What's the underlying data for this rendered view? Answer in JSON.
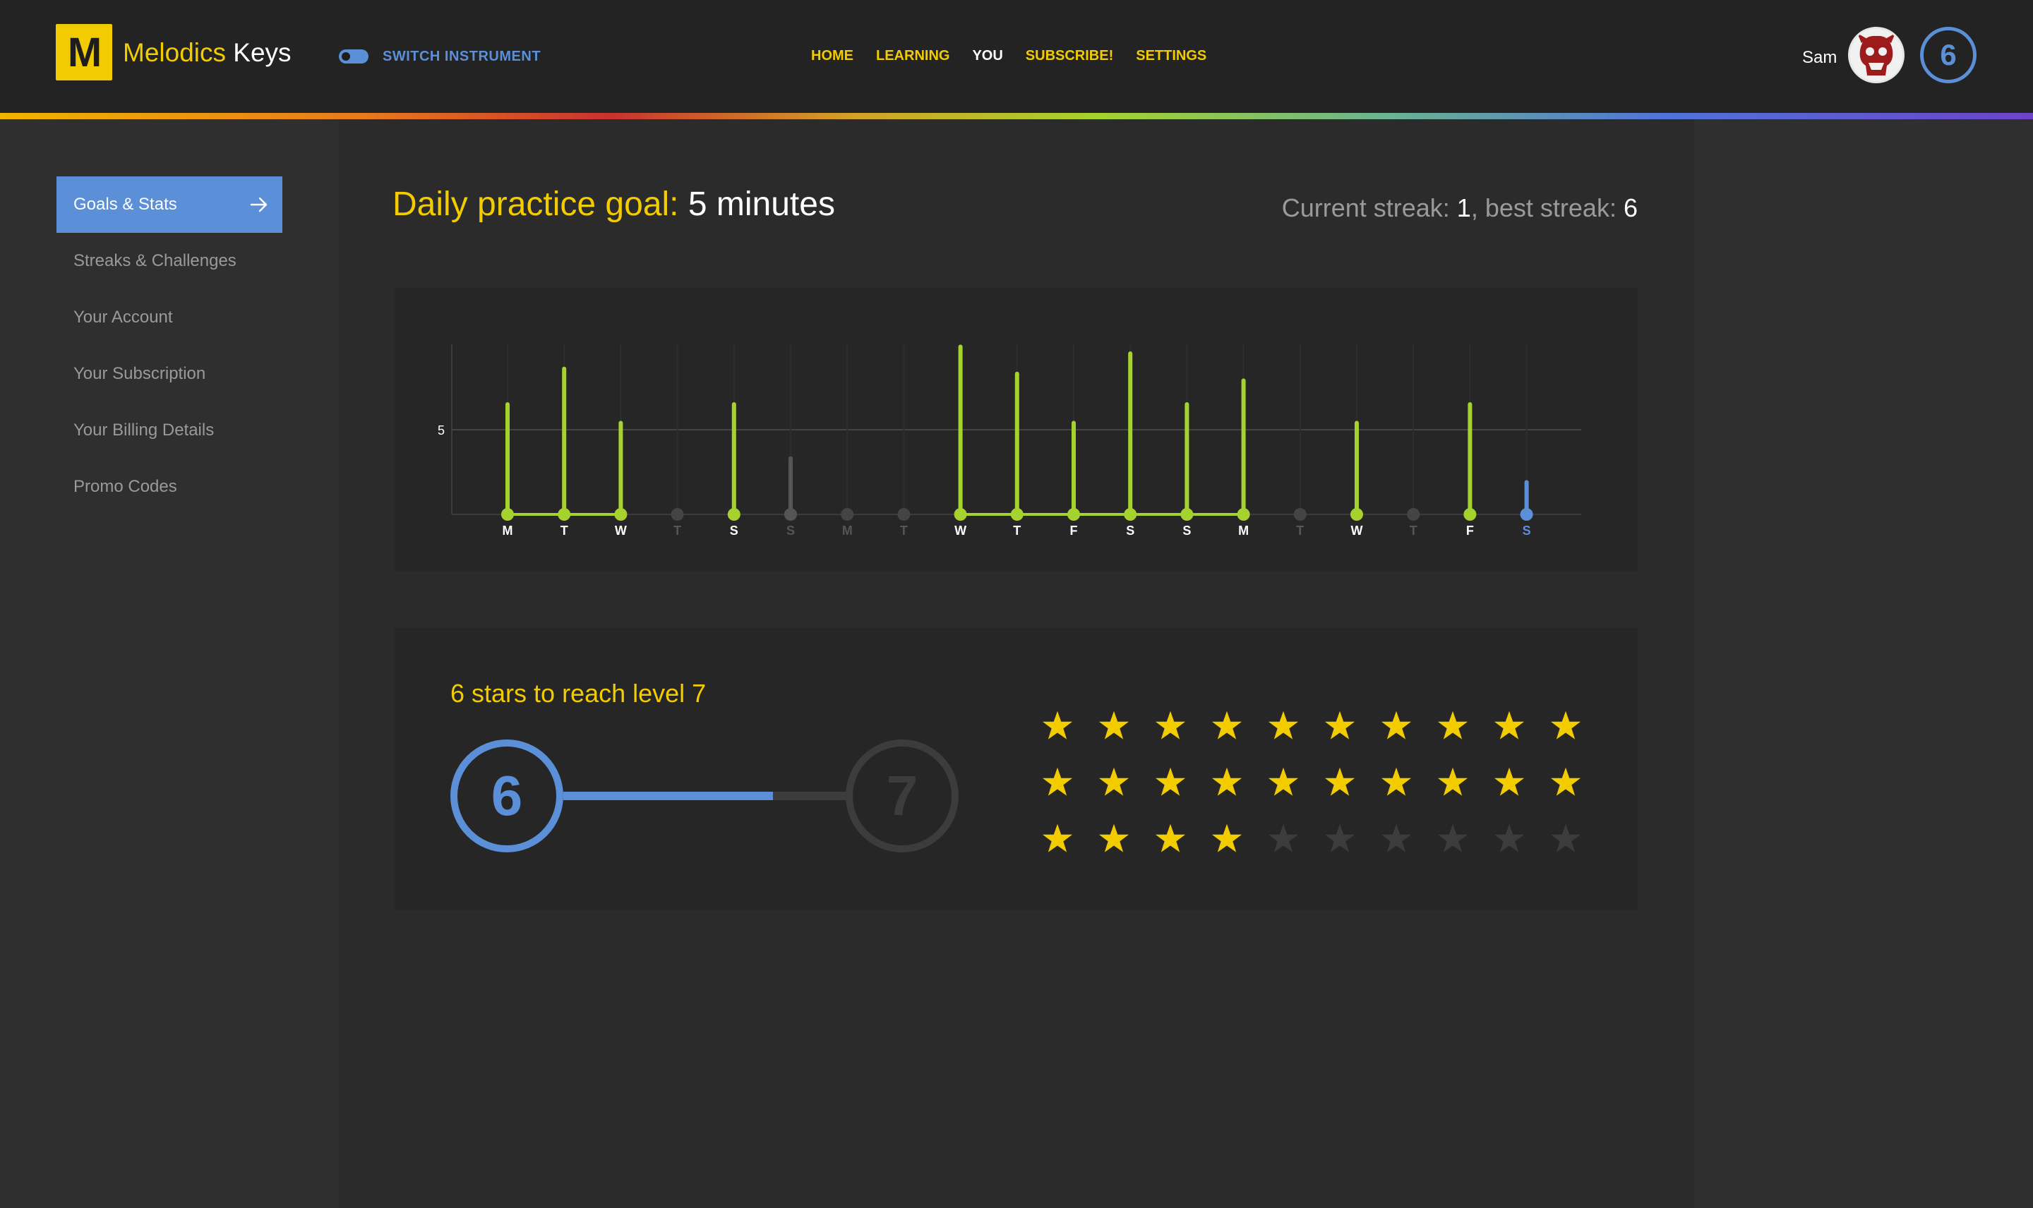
{
  "app": {
    "logo_letter": "M",
    "brand": "Melodics",
    "brand_suffix": "Keys"
  },
  "header": {
    "switch_label": "SWITCH INSTRUMENT",
    "nav": [
      "HOME",
      "LEARNING",
      "YOU",
      "SUBSCRIBE!",
      "SETTINGS"
    ],
    "nav_active": "YOU",
    "user_name": "Sam",
    "level": "6"
  },
  "sidebar": {
    "items": [
      {
        "label": "Goals & Stats",
        "active": true
      },
      {
        "label": "Streaks & Challenges",
        "active": false
      },
      {
        "label": "Your Account",
        "active": false
      },
      {
        "label": "Your Subscription",
        "active": false
      },
      {
        "label": "Your Billing Details",
        "active": false
      },
      {
        "label": "Promo Codes",
        "active": false
      }
    ]
  },
  "goal": {
    "label": "Daily practice goal:",
    "value": "5 minutes"
  },
  "streak": {
    "current_label": "Current streak:",
    "current": "1",
    "sep": ",",
    "best_label": "best streak:",
    "best": "6"
  },
  "chart_data": {
    "type": "bar",
    "goal_line": 5,
    "ytick": "5",
    "ylim": [
      0,
      10
    ],
    "colors": {
      "met": "#a5d22d",
      "missed": "#555555",
      "today": "#5b8fd8",
      "inactive_label": "#555555"
    },
    "days": [
      {
        "label": "M",
        "value": 6.5,
        "state": "met"
      },
      {
        "label": "T",
        "value": 8.6,
        "state": "met"
      },
      {
        "label": "W",
        "value": 5.4,
        "state": "met"
      },
      {
        "label": "T",
        "value": 0,
        "state": "none"
      },
      {
        "label": "S",
        "value": 6.5,
        "state": "met"
      },
      {
        "label": "S",
        "value": 3.3,
        "state": "missed"
      },
      {
        "label": "M",
        "value": 0,
        "state": "none"
      },
      {
        "label": "T",
        "value": 0,
        "state": "none"
      },
      {
        "label": "W",
        "value": 9.9,
        "state": "met"
      },
      {
        "label": "T",
        "value": 8.3,
        "state": "met"
      },
      {
        "label": "F",
        "value": 5.4,
        "state": "met"
      },
      {
        "label": "S",
        "value": 9.5,
        "state": "met"
      },
      {
        "label": "S",
        "value": 6.5,
        "state": "met"
      },
      {
        "label": "M",
        "value": 7.9,
        "state": "met"
      },
      {
        "label": "T",
        "value": 0,
        "state": "none"
      },
      {
        "label": "W",
        "value": 5.4,
        "state": "met"
      },
      {
        "label": "T",
        "value": 0,
        "state": "none"
      },
      {
        "label": "F",
        "value": 6.5,
        "state": "met"
      },
      {
        "label": "S",
        "value": 1.9,
        "state": "today"
      }
    ]
  },
  "level_progress": {
    "title": "6 stars to reach level 7",
    "from": "6",
    "to": "7",
    "progress": 0.74
  },
  "stars": {
    "total": 30,
    "earned": 24,
    "per_row": 10,
    "earned_color": "#f2cc00",
    "empty_color": "#3c3c3c"
  }
}
